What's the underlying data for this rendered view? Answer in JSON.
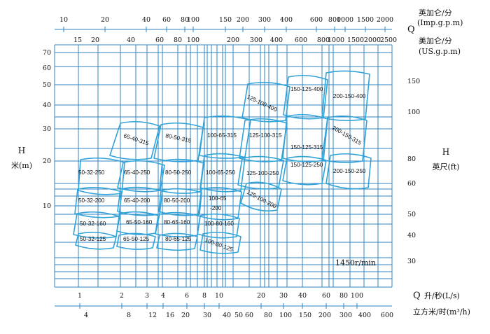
{
  "chart_data": {
    "type": "performance-chart",
    "x_top_row1": {
      "label": "英加仑/分",
      "unit": "(Imp.g.p.m)",
      "ticks": [
        "10",
        "20",
        "40",
        "60",
        "80",
        "100",
        "150",
        "200",
        "300",
        "400",
        "600",
        "800",
        "1000",
        "1500",
        "2000"
      ]
    },
    "x_top_row2": {
      "label": "美加仑/分",
      "unit": "(US.g.p.m)",
      "ticks": [
        "15",
        "20",
        "40",
        "60",
        "80",
        "100",
        "200",
        "300",
        "400",
        "600",
        "800",
        "1000",
        "1500",
        "2000",
        "2500"
      ]
    },
    "x_top_symbol": "Q",
    "x_bottom_row1": {
      "label": "升/秒(L/s)",
      "ticks": [
        "1",
        "2",
        "3",
        "4",
        "6",
        "8",
        "10",
        "20",
        "30",
        "40",
        "60",
        "80",
        "100"
      ]
    },
    "x_bottom_row2": {
      "label": "立方米/时(m³/h)",
      "ticks": [
        "4",
        "8",
        "12",
        "16",
        "20",
        "30",
        "40",
        "50",
        "60",
        "80",
        "100",
        "150",
        "200",
        "300",
        "400",
        "600"
      ]
    },
    "x_bottom_symbol": "Q",
    "y_left": {
      "symbol": "H",
      "label": "米(m)",
      "ticks": [
        "70",
        "60",
        "50",
        "40",
        "30",
        "20",
        "10"
      ]
    },
    "y_right": {
      "symbol": "H",
      "label": "英尺(ft)",
      "ticks": [
        "150",
        "100",
        "80",
        "60",
        "50",
        "40",
        "30"
      ]
    },
    "speed_label": "1450r/min",
    "pumps": [
      {
        "label": "50-32-250"
      },
      {
        "label": "50-32-200"
      },
      {
        "label": "50-32-160"
      },
      {
        "label": "50-32-125"
      },
      {
        "label": "65-40-315"
      },
      {
        "label": "65-40-250"
      },
      {
        "label": "65-40-200"
      },
      {
        "label": "65-50-160"
      },
      {
        "label": "65-50-125"
      },
      {
        "label": "80-50-315"
      },
      {
        "label": "80-50-250"
      },
      {
        "label": "80-50-200"
      },
      {
        "label": "80-65-160"
      },
      {
        "label": "80-65-125"
      },
      {
        "label": "100-65-315"
      },
      {
        "label": "100-65-250"
      },
      {
        "label": "100-65"
      },
      {
        "label": "-200"
      },
      {
        "label": "100-80-160"
      },
      {
        "label": "100-80-125"
      },
      {
        "label": "125-100-400"
      },
      {
        "label": "125-100-315"
      },
      {
        "label": "125-100-250"
      },
      {
        "label": "125-100-200"
      },
      {
        "label": "150-125-400"
      },
      {
        "label": "150-125-315"
      },
      {
        "label": "150-125-250"
      },
      {
        "label": "200-150-400"
      },
      {
        "label": "200-150-315"
      },
      {
        "label": "200-150-250"
      }
    ]
  },
  "colors": {
    "grid": "#2d84bf",
    "region": "#31a3d8",
    "text": "#111111"
  }
}
